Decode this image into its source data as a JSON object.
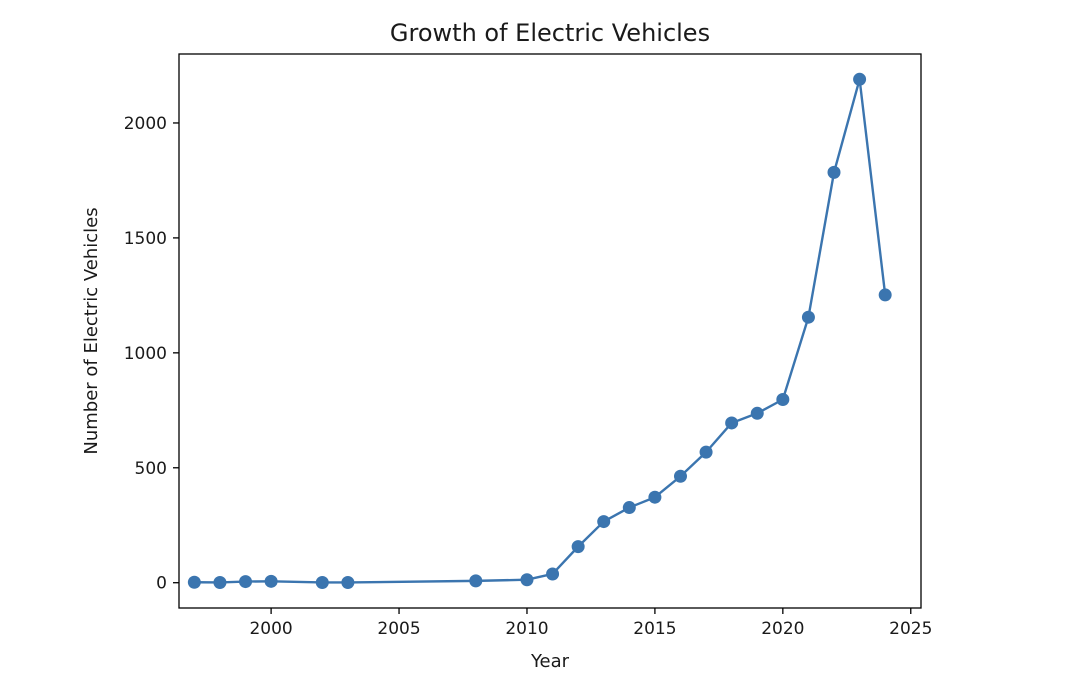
{
  "chart_data": {
    "type": "line",
    "title": "Growth of Electric Vehicles",
    "xlabel": "Year",
    "ylabel": "Number of Electric Vehicles",
    "xlim": [
      1996.4,
      2025.4
    ],
    "ylim": [
      -110,
      2300
    ],
    "xticks": [
      2000,
      2005,
      2010,
      2015,
      2020,
      2025
    ],
    "yticks": [
      0,
      500,
      1000,
      1500,
      2000
    ],
    "grid": false,
    "marker": "circle",
    "color": "#3b75af",
    "series": [
      {
        "x": [
          1997,
          1998,
          1999,
          2000,
          2002,
          2003,
          2008,
          2010,
          2011,
          2012,
          2013,
          2014,
          2015,
          2016,
          2017,
          2018,
          2019,
          2020,
          2021,
          2022,
          2023,
          2024
        ],
        "values": [
          2,
          1,
          5,
          6,
          1,
          1,
          8,
          13,
          38,
          157,
          266,
          327,
          372,
          463,
          568,
          695,
          737,
          797,
          1155,
          1785,
          2190,
          1252
        ]
      }
    ]
  }
}
